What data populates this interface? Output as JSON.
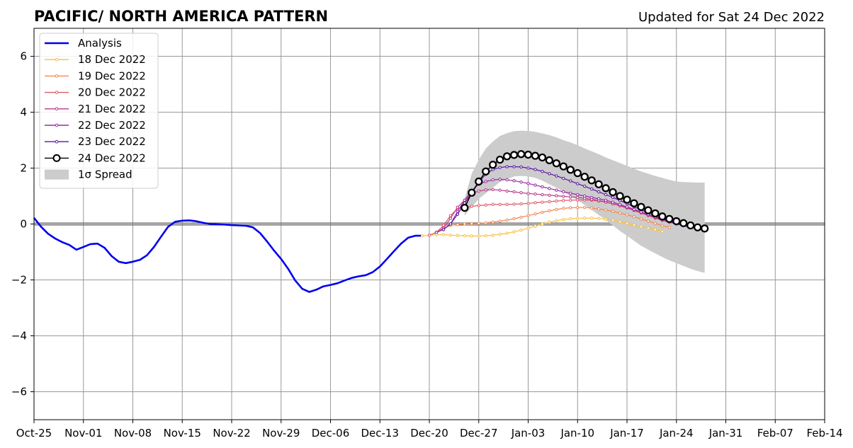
{
  "chart_data": {
    "type": "line",
    "title": "PACIFIC/ NORTH AMERICA PATTERN",
    "subtitle": "Updated for Sat 24 Dec 2022",
    "xlabel": "",
    "ylabel": "",
    "x_axis": {
      "start": "2022-10-25",
      "end": "2023-02-14",
      "tick_labels": [
        "Oct-25",
        "Nov-01",
        "Nov-08",
        "Nov-15",
        "Nov-22",
        "Nov-29",
        "Dec-06",
        "Dec-13",
        "Dec-20",
        "Dec-27",
        "Jan-03",
        "Jan-10",
        "Jan-17",
        "Jan-24",
        "Jan-31",
        "Feb-07",
        "Feb-14"
      ]
    },
    "y_axis": {
      "ylim": [
        -7,
        7
      ],
      "ticks": [
        6,
        4,
        2,
        0,
        -2,
        -4,
        -6
      ],
      "tick_labels": [
        "6",
        "4",
        "2",
        "0",
        "−2",
        "−4",
        "−6"
      ]
    },
    "grid": true,
    "legend_position": "top-left",
    "spread_label": "1σ Spread",
    "analysis": {
      "name": "Analysis",
      "color": "#0000ee",
      "x": [
        "2022-10-25",
        "2022-10-26",
        "2022-10-27",
        "2022-10-28",
        "2022-10-29",
        "2022-10-30",
        "2022-10-31",
        "2022-11-01",
        "2022-11-02",
        "2022-11-03",
        "2022-11-04",
        "2022-11-05",
        "2022-11-06",
        "2022-11-07",
        "2022-11-08",
        "2022-11-09",
        "2022-11-10",
        "2022-11-11",
        "2022-11-12",
        "2022-11-13",
        "2022-11-14",
        "2022-11-15",
        "2022-11-16",
        "2022-11-17",
        "2022-11-18",
        "2022-11-19",
        "2022-11-20",
        "2022-11-21",
        "2022-11-22",
        "2022-11-23",
        "2022-11-24",
        "2022-11-25",
        "2022-11-26",
        "2022-11-27",
        "2022-11-28",
        "2022-11-29",
        "2022-11-30",
        "2022-12-01",
        "2022-12-02",
        "2022-12-03",
        "2022-12-04",
        "2022-12-05",
        "2022-12-06",
        "2022-12-07",
        "2022-12-08",
        "2022-12-09",
        "2022-12-10",
        "2022-12-11",
        "2022-12-12",
        "2022-12-13",
        "2022-12-14",
        "2022-12-15",
        "2022-12-16",
        "2022-12-17",
        "2022-12-18",
        "2022-12-19"
      ],
      "y": [
        0.22,
        -0.1,
        -0.35,
        -0.52,
        -0.65,
        -0.75,
        -0.92,
        -0.82,
        -0.72,
        -0.7,
        -0.85,
        -1.15,
        -1.35,
        -1.4,
        -1.35,
        -1.28,
        -1.12,
        -0.82,
        -0.45,
        -0.1,
        0.08,
        0.12,
        0.13,
        0.1,
        0.04,
        0.0,
        -0.01,
        -0.02,
        -0.04,
        -0.05,
        -0.06,
        -0.12,
        -0.32,
        -0.62,
        -0.95,
        -1.25,
        -1.6,
        -2.02,
        -2.32,
        -2.43,
        -2.35,
        -2.23,
        -2.18,
        -2.12,
        -2.02,
        -1.93,
        -1.87,
        -1.83,
        -1.72,
        -1.52,
        -1.25,
        -0.97,
        -0.7,
        -0.49,
        -0.42,
        -0.42
      ]
    },
    "spread": {
      "name": "1σ Spread",
      "color": "#cccccc",
      "x": [
        "2022-12-25",
        "2022-12-26",
        "2022-12-27",
        "2022-12-28",
        "2022-12-29",
        "2022-12-30",
        "2022-12-31",
        "2023-01-01",
        "2023-01-02",
        "2023-01-03",
        "2023-01-04",
        "2023-01-05",
        "2023-01-06",
        "2023-01-07",
        "2023-01-08",
        "2023-01-09",
        "2023-01-10",
        "2023-01-11",
        "2023-01-12",
        "2023-01-13",
        "2023-01-14",
        "2023-01-15",
        "2023-01-16",
        "2023-01-17",
        "2023-01-18",
        "2023-01-19",
        "2023-01-20",
        "2023-01-21",
        "2023-01-22",
        "2023-01-23",
        "2023-01-24",
        "2023-01-25",
        "2023-01-26",
        "2023-01-27",
        "2023-01-28"
      ],
      "upper": [
        0.9,
        1.8,
        2.3,
        2.7,
        2.95,
        3.15,
        3.25,
        3.32,
        3.34,
        3.33,
        3.3,
        3.24,
        3.18,
        3.1,
        3.0,
        2.92,
        2.82,
        2.7,
        2.6,
        2.5,
        2.38,
        2.28,
        2.18,
        2.08,
        1.98,
        1.88,
        1.8,
        1.72,
        1.65,
        1.58,
        1.52,
        1.5,
        1.49,
        1.48,
        1.48
      ],
      "lower": [
        0.3,
        0.6,
        0.9,
        1.1,
        1.3,
        1.5,
        1.6,
        1.7,
        1.72,
        1.7,
        1.65,
        1.55,
        1.42,
        1.3,
        1.15,
        1.0,
        0.85,
        0.68,
        0.5,
        0.32,
        0.15,
        -0.05,
        -0.25,
        -0.42,
        -0.6,
        -0.78,
        -0.92,
        -1.05,
        -1.18,
        -1.3,
        -1.4,
        -1.5,
        -1.6,
        -1.68,
        -1.75
      ]
    },
    "series": [
      {
        "name": "18 Dec 2022",
        "color": "#f8c040",
        "x": [
          "2022-12-19",
          "2022-12-20",
          "2022-12-21",
          "2022-12-22",
          "2022-12-23",
          "2022-12-24",
          "2022-12-25",
          "2022-12-26",
          "2022-12-27",
          "2022-12-28",
          "2022-12-29",
          "2022-12-30",
          "2022-12-31",
          "2023-01-01",
          "2023-01-02",
          "2023-01-03",
          "2023-01-04",
          "2023-01-05",
          "2023-01-06",
          "2023-01-07",
          "2023-01-08",
          "2023-01-09",
          "2023-01-10",
          "2023-01-11",
          "2023-01-12",
          "2023-01-13",
          "2023-01-14",
          "2023-01-15",
          "2023-01-16",
          "2023-01-17",
          "2023-01-18",
          "2023-01-19",
          "2023-01-20",
          "2023-01-21",
          "2023-01-22"
        ],
        "y": [
          -0.42,
          -0.4,
          -0.38,
          -0.38,
          -0.4,
          -0.41,
          -0.42,
          -0.43,
          -0.43,
          -0.42,
          -0.4,
          -0.37,
          -0.33,
          -0.28,
          -0.22,
          -0.15,
          -0.08,
          0.0,
          0.07,
          0.12,
          0.16,
          0.19,
          0.2,
          0.21,
          0.21,
          0.2,
          0.17,
          0.13,
          0.08,
          0.02,
          -0.04,
          -0.1,
          -0.15,
          -0.2,
          -0.26
        ]
      },
      {
        "name": "19 Dec 2022",
        "color": "#f08850",
        "x": [
          "2022-12-20",
          "2022-12-21",
          "2022-12-22",
          "2022-12-23",
          "2022-12-24",
          "2022-12-25",
          "2022-12-26",
          "2022-12-27",
          "2022-12-28",
          "2022-12-29",
          "2022-12-30",
          "2022-12-31",
          "2023-01-01",
          "2023-01-02",
          "2023-01-03",
          "2023-01-04",
          "2023-01-05",
          "2023-01-06",
          "2023-01-07",
          "2023-01-08",
          "2023-01-09",
          "2023-01-10",
          "2023-01-11",
          "2023-01-12",
          "2023-01-13",
          "2023-01-14",
          "2023-01-15",
          "2023-01-16",
          "2023-01-17",
          "2023-01-18",
          "2023-01-19",
          "2023-01-20",
          "2023-01-21",
          "2023-01-22",
          "2023-01-23"
        ],
        "y": [
          -0.4,
          -0.3,
          -0.15,
          -0.05,
          -0.02,
          0.0,
          0.01,
          0.02,
          0.04,
          0.07,
          0.1,
          0.14,
          0.19,
          0.24,
          0.3,
          0.36,
          0.42,
          0.47,
          0.52,
          0.56,
          0.58,
          0.59,
          0.59,
          0.57,
          0.54,
          0.5,
          0.45,
          0.39,
          0.33,
          0.26,
          0.18,
          0.1,
          0.02,
          -0.06,
          -0.12
        ]
      },
      {
        "name": "20 Dec 2022",
        "color": "#e05a6a",
        "x": [
          "2022-12-20",
          "2022-12-21",
          "2022-12-22",
          "2022-12-23",
          "2022-12-24",
          "2022-12-25",
          "2022-12-26",
          "2022-12-27",
          "2022-12-28",
          "2022-12-29",
          "2022-12-30",
          "2022-12-31",
          "2023-01-01",
          "2023-01-02",
          "2023-01-03",
          "2023-01-04",
          "2023-01-05",
          "2023-01-06",
          "2023-01-07",
          "2023-01-08",
          "2023-01-09",
          "2023-01-10",
          "2023-01-11",
          "2023-01-12",
          "2023-01-13",
          "2023-01-14",
          "2023-01-15",
          "2023-01-16",
          "2023-01-17",
          "2023-01-18",
          "2023-01-19",
          "2023-01-20",
          "2023-01-21",
          "2023-01-22",
          "2023-01-23",
          "2023-01-24",
          "2023-01-25"
        ],
        "y": [
          -0.4,
          -0.3,
          -0.05,
          0.3,
          0.55,
          0.6,
          0.63,
          0.66,
          0.68,
          0.7,
          0.7,
          0.7,
          0.71,
          0.72,
          0.74,
          0.76,
          0.78,
          0.8,
          0.82,
          0.84,
          0.85,
          0.86,
          0.86,
          0.85,
          0.82,
          0.78,
          0.72,
          0.65,
          0.57,
          0.48,
          0.39,
          0.3,
          0.21,
          0.13,
          0.06,
          0.0,
          -0.05
        ]
      },
      {
        "name": "21 Dec 2022",
        "color": "#b83a8a",
        "x": [
          "2022-12-21",
          "2022-12-22",
          "2022-12-23",
          "2022-12-24",
          "2022-12-25",
          "2022-12-26",
          "2022-12-27",
          "2022-12-28",
          "2022-12-29",
          "2022-12-30",
          "2022-12-31",
          "2023-01-01",
          "2023-01-02",
          "2023-01-03",
          "2023-01-04",
          "2023-01-05",
          "2023-01-06",
          "2023-01-07",
          "2023-01-08",
          "2023-01-09",
          "2023-01-10",
          "2023-01-11",
          "2023-01-12",
          "2023-01-13",
          "2023-01-14",
          "2023-01-15",
          "2023-01-16",
          "2023-01-17",
          "2023-01-18",
          "2023-01-19",
          "2023-01-20",
          "2023-01-21",
          "2023-01-22",
          "2023-01-23",
          "2023-01-24",
          "2023-01-25",
          "2023-01-26"
        ],
        "y": [
          -0.3,
          -0.15,
          0.2,
          0.6,
          0.85,
          1.1,
          1.18,
          1.22,
          1.23,
          1.21,
          1.18,
          1.15,
          1.12,
          1.09,
          1.07,
          1.05,
          1.03,
          1.01,
          0.99,
          0.97,
          0.95,
          0.92,
          0.88,
          0.84,
          0.79,
          0.73,
          0.66,
          0.58,
          0.5,
          0.41,
          0.32,
          0.23,
          0.14,
          0.06,
          0.0,
          -0.05,
          -0.1
        ]
      },
      {
        "name": "22 Dec 2022",
        "color": "#9a2aaa",
        "x": [
          "2022-12-21",
          "2022-12-22",
          "2022-12-23",
          "2022-12-24",
          "2022-12-25",
          "2022-12-26",
          "2022-12-27",
          "2022-12-28",
          "2022-12-29",
          "2022-12-30",
          "2022-12-31",
          "2023-01-01",
          "2023-01-02",
          "2023-01-03",
          "2023-01-04",
          "2023-01-05",
          "2023-01-06",
          "2023-01-07",
          "2023-01-08",
          "2023-01-09",
          "2023-01-10",
          "2023-01-11",
          "2023-01-12",
          "2023-01-13",
          "2023-01-14",
          "2023-01-15",
          "2023-01-16",
          "2023-01-17",
          "2023-01-18",
          "2023-01-19",
          "2023-01-20",
          "2023-01-21",
          "2023-01-22",
          "2023-01-23",
          "2023-01-24",
          "2023-01-25",
          "2023-01-26"
        ],
        "y": [
          -0.3,
          -0.2,
          0.0,
          0.45,
          0.85,
          1.2,
          1.42,
          1.52,
          1.58,
          1.6,
          1.58,
          1.55,
          1.5,
          1.45,
          1.39,
          1.33,
          1.27,
          1.21,
          1.15,
          1.1,
          1.05,
          1.0,
          0.95,
          0.9,
          0.85,
          0.78,
          0.7,
          0.61,
          0.52,
          0.43,
          0.34,
          0.25,
          0.17,
          0.09,
          0.02,
          -0.04,
          -0.1
        ]
      },
      {
        "name": "23 Dec 2022",
        "color": "#5a14a0",
        "x": [
          "2022-12-22",
          "2022-12-23",
          "2022-12-24",
          "2022-12-25",
          "2022-12-26",
          "2022-12-27",
          "2022-12-28",
          "2022-12-29",
          "2022-12-30",
          "2022-12-31",
          "2023-01-01",
          "2023-01-02",
          "2023-01-03",
          "2023-01-04",
          "2023-01-05",
          "2023-01-06",
          "2023-01-07",
          "2023-01-08",
          "2023-01-09",
          "2023-01-10",
          "2023-01-11",
          "2023-01-12",
          "2023-01-13",
          "2023-01-14",
          "2023-01-15",
          "2023-01-16",
          "2023-01-17",
          "2023-01-18",
          "2023-01-19",
          "2023-01-20",
          "2023-01-21",
          "2023-01-22",
          "2023-01-23",
          "2023-01-24",
          "2023-01-25",
          "2023-01-26"
        ],
        "y": [
          -0.2,
          0.0,
          0.35,
          0.75,
          1.1,
          1.5,
          1.78,
          1.95,
          2.02,
          2.05,
          2.05,
          2.04,
          2.0,
          1.95,
          1.88,
          1.8,
          1.72,
          1.63,
          1.54,
          1.44,
          1.35,
          1.25,
          1.15,
          1.05,
          0.95,
          0.84,
          0.73,
          0.62,
          0.51,
          0.4,
          0.3,
          0.2,
          0.1,
          0.01,
          -0.06,
          -0.12
        ]
      },
      {
        "name": "24 Dec 2022",
        "color": "#000000",
        "x": [
          "2022-12-25",
          "2022-12-26",
          "2022-12-27",
          "2022-12-28",
          "2022-12-29",
          "2022-12-30",
          "2022-12-31",
          "2023-01-01",
          "2023-01-02",
          "2023-01-03",
          "2023-01-04",
          "2023-01-05",
          "2023-01-06",
          "2023-01-07",
          "2023-01-08",
          "2023-01-09",
          "2023-01-10",
          "2023-01-11",
          "2023-01-12",
          "2023-01-13",
          "2023-01-14",
          "2023-01-15",
          "2023-01-16",
          "2023-01-17",
          "2023-01-18",
          "2023-01-19",
          "2023-01-20",
          "2023-01-21",
          "2023-01-22",
          "2023-01-23",
          "2023-01-24",
          "2023-01-25",
          "2023-01-26",
          "2023-01-27",
          "2023-01-28"
        ],
        "y": [
          0.58,
          1.12,
          1.52,
          1.88,
          2.12,
          2.3,
          2.42,
          2.47,
          2.5,
          2.48,
          2.44,
          2.38,
          2.28,
          2.17,
          2.06,
          1.94,
          1.82,
          1.69,
          1.56,
          1.42,
          1.28,
          1.14,
          1.0,
          0.87,
          0.74,
          0.61,
          0.49,
          0.38,
          0.27,
          0.18,
          0.1,
          0.03,
          -0.05,
          -0.12,
          -0.16
        ]
      }
    ]
  }
}
